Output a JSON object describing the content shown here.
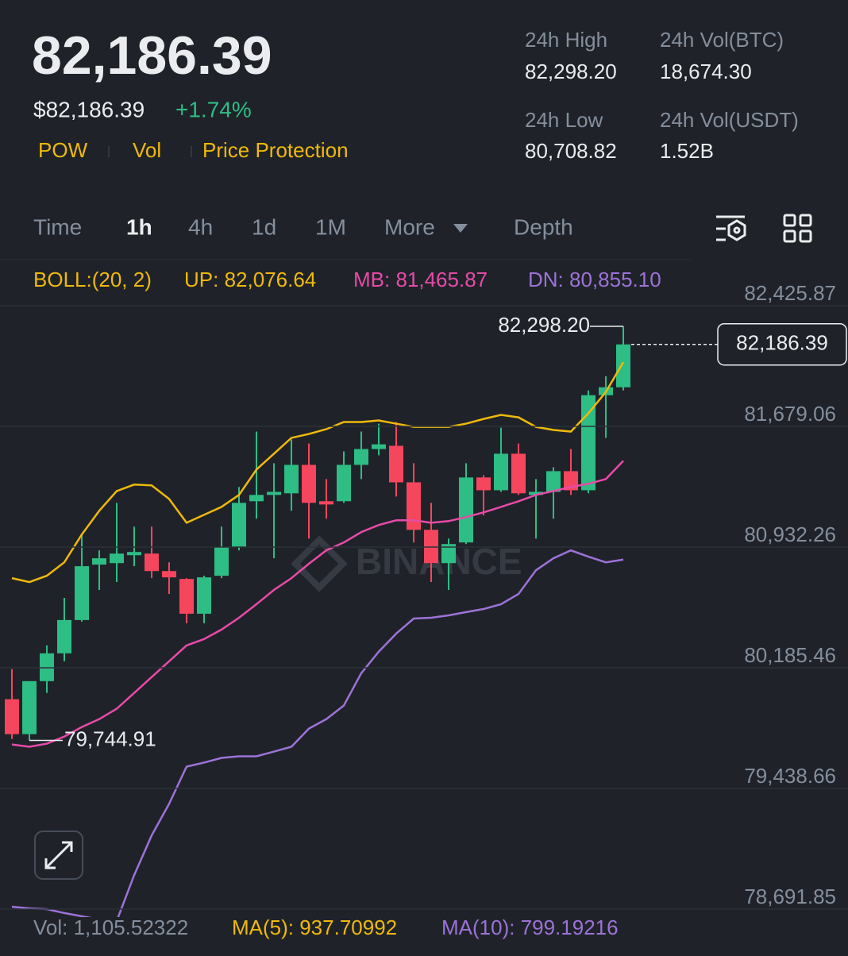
{
  "header": {
    "price": "82,186.39",
    "fiat_price": "$82,186.39",
    "change": "+1.74%",
    "tags": [
      "POW",
      "Vol",
      "Price Protection"
    ],
    "stats": [
      {
        "label": "24h High",
        "value": "82,298.20"
      },
      {
        "label": "24h Vol(BTC)",
        "value": "18,674.30"
      },
      {
        "label": "24h Low",
        "value": "80,708.82"
      },
      {
        "label": "24h Vol(USDT)",
        "value": "1.52B"
      }
    ]
  },
  "tabs": [
    "Time",
    "1h",
    "4h",
    "1d",
    "1M",
    "More",
    "Depth"
  ],
  "chart_data": {
    "type": "candlestick",
    "indicator": "BOLL:(20, 2)",
    "watermark": "BINANCE",
    "up_color": "#2ebd85",
    "down_color": "#f6465d",
    "grid": true,
    "ylim": [
      78643,
      82696
    ],
    "yticks": [
      {
        "value": 82425.87,
        "label": "82,425.87"
      },
      {
        "value": 81679.06,
        "label": "81,679.06"
      },
      {
        "value": 80932.26,
        "label": "80,932.26"
      },
      {
        "value": 80185.46,
        "label": "80,185.46"
      },
      {
        "value": 79438.66,
        "label": "79,438.66"
      },
      {
        "value": 78691.85,
        "label": "78,691.85"
      }
    ],
    "open": [
      79991,
      79775,
      80103,
      80275,
      80481,
      80824,
      80833,
      80882,
      80892,
      80784,
      80735,
      80520,
      80755,
      80931,
      81216,
      81255,
      81265,
      81441,
      81216,
      81216,
      81441,
      81539,
      81559,
      81333,
      81039,
      80833,
      80961,
      81363,
      81284,
      81510,
      81255,
      81274,
      81402,
      81284,
      81872,
      81921
    ],
    "high": [
      80177,
      80103,
      80324,
      80618,
      81010,
      80912,
      81206,
      81059,
      81059,
      80838,
      80740,
      80755,
      81059,
      81304,
      81647,
      81451,
      81598,
      81573,
      81353,
      81524,
      81647,
      81696,
      81706,
      81451,
      81206,
      80985,
      81451,
      81377,
      81671,
      81573,
      81353,
      81426,
      81539,
      81902,
      81990,
      82298.2
    ],
    "low": [
      79744.91,
      79736,
      80030,
      80226,
      80471,
      80667,
      80716,
      80814,
      80740,
      80642,
      80461,
      80461,
      80740,
      80912,
      81108,
      80863,
      81157,
      80985,
      81108,
      81206,
      81353,
      81500,
      81245,
      80961,
      80716,
      80667,
      80951,
      81128,
      81274,
      81255,
      80985,
      81108,
      81255,
      81265,
      81608,
      81902
    ],
    "close": [
      79775,
      80103,
      80275,
      80481,
      80814,
      80863,
      80892,
      80902,
      80784,
      80745,
      80520,
      80745,
      80931,
      81206,
      81255,
      81274,
      81441,
      81206,
      81196,
      81441,
      81539,
      81568,
      81333,
      81039,
      80833,
      80951,
      81363,
      81284,
      81510,
      81265,
      81274,
      81402,
      81284,
      81872,
      81921,
      82186.39
    ],
    "high_label": "82,298.20",
    "low_label": "79,744.91",
    "last_label": "82,186.39",
    "series": [
      {
        "label": "UP: 82,076.64",
        "color": "#f0b90b",
        "values": [
          80740,
          80716,
          80755,
          80838,
          81010,
          81157,
          81279,
          81319,
          81314,
          81230,
          81083,
          81132,
          81181,
          81255,
          81412,
          81510,
          81608,
          81632,
          81662,
          81706,
          81706,
          81716,
          81696,
          81676,
          81676,
          81676,
          81696,
          81725,
          81750,
          81735,
          81676,
          81657,
          81647,
          81760,
          81892,
          82076.64
        ]
      },
      {
        "label": "MB: 81,465.87",
        "color": "#e84aa8",
        "values": [
          79711,
          79697,
          79716,
          79760,
          79819,
          79868,
          79932,
          80030,
          80128,
          80226,
          80324,
          80363,
          80422,
          80495,
          80579,
          80667,
          80740,
          80829,
          80912,
          80961,
          81025,
          81069,
          81098,
          81098,
          81083,
          81093,
          81118,
          81147,
          81181,
          81216,
          81255,
          81279,
          81304,
          81324,
          81353,
          81465.87
        ]
      },
      {
        "label": "DN: 80,855.10",
        "color": "#9d72d8",
        "values": [
          78707,
          78697,
          78692,
          78668,
          78648,
          78629,
          78619,
          78903,
          79148,
          79344,
          79574,
          79599,
          79628,
          79638,
          79638,
          79667,
          79697,
          79809,
          79868,
          79952,
          80152,
          80285,
          80397,
          80490,
          80495,
          80510,
          80530,
          80549,
          80579,
          80642,
          80789,
          80863,
          80912,
          80873,
          80838,
          80855.1
        ]
      }
    ]
  },
  "footer": {
    "volume": "Vol: 1,105.52322",
    "ma5": "MA(5): 937.70992",
    "ma10": "MA(10): 799.19216"
  }
}
